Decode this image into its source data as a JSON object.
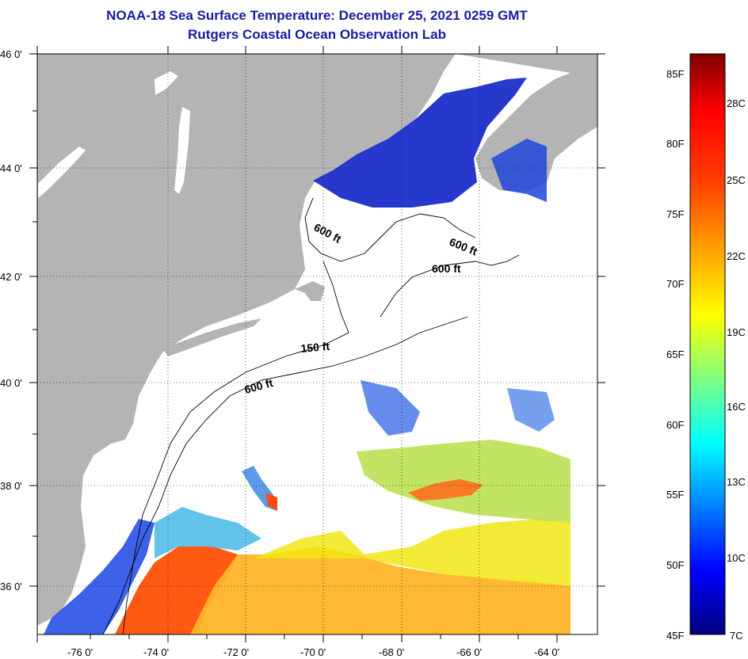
{
  "title": "NOAA-18 Sea Surface Temperature:  December 25, 2021 0259 GMT",
  "subtitle": "Rutgers Coastal Ocean Observation Lab",
  "lon_ticks": [
    "-76 0'",
    "-74 0'",
    "-72 0'",
    "-70 0'",
    "-68 0'",
    "-66 0'",
    "-64 0'"
  ],
  "lat_ticks": [
    "46 0'",
    "44 0'",
    "42 0'",
    "40 0'",
    "38 0'",
    "36 0'"
  ],
  "contours": [
    "600 ft",
    "600 ft",
    "600 ft",
    "150 ft",
    "600 ft"
  ],
  "colorbar": {
    "f_labels": [
      "85F",
      "80F",
      "75F",
      "70F",
      "65F",
      "60F",
      "55F",
      "50F",
      "45F"
    ],
    "c_labels": [
      "28C",
      "25C",
      "22C",
      "19C",
      "16C",
      "13C",
      "10C",
      "7C"
    ]
  },
  "colors": {
    "land": "#b4b4b4",
    "title": "#1a1aa0"
  }
}
